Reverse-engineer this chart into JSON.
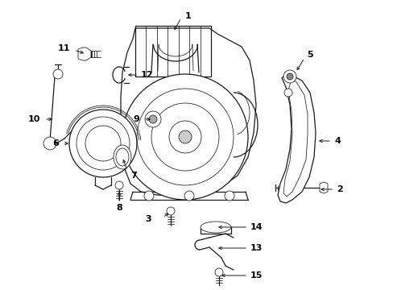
{
  "bg_color": "#ffffff",
  "line_color": "#1a1a1a",
  "text_color": "#000000",
  "fig_width": 4.89,
  "fig_height": 3.6,
  "dpi": 100,
  "label_fs": 8,
  "lw_main": 0.9,
  "lw_thin": 0.55,
  "lw_thick": 1.2
}
